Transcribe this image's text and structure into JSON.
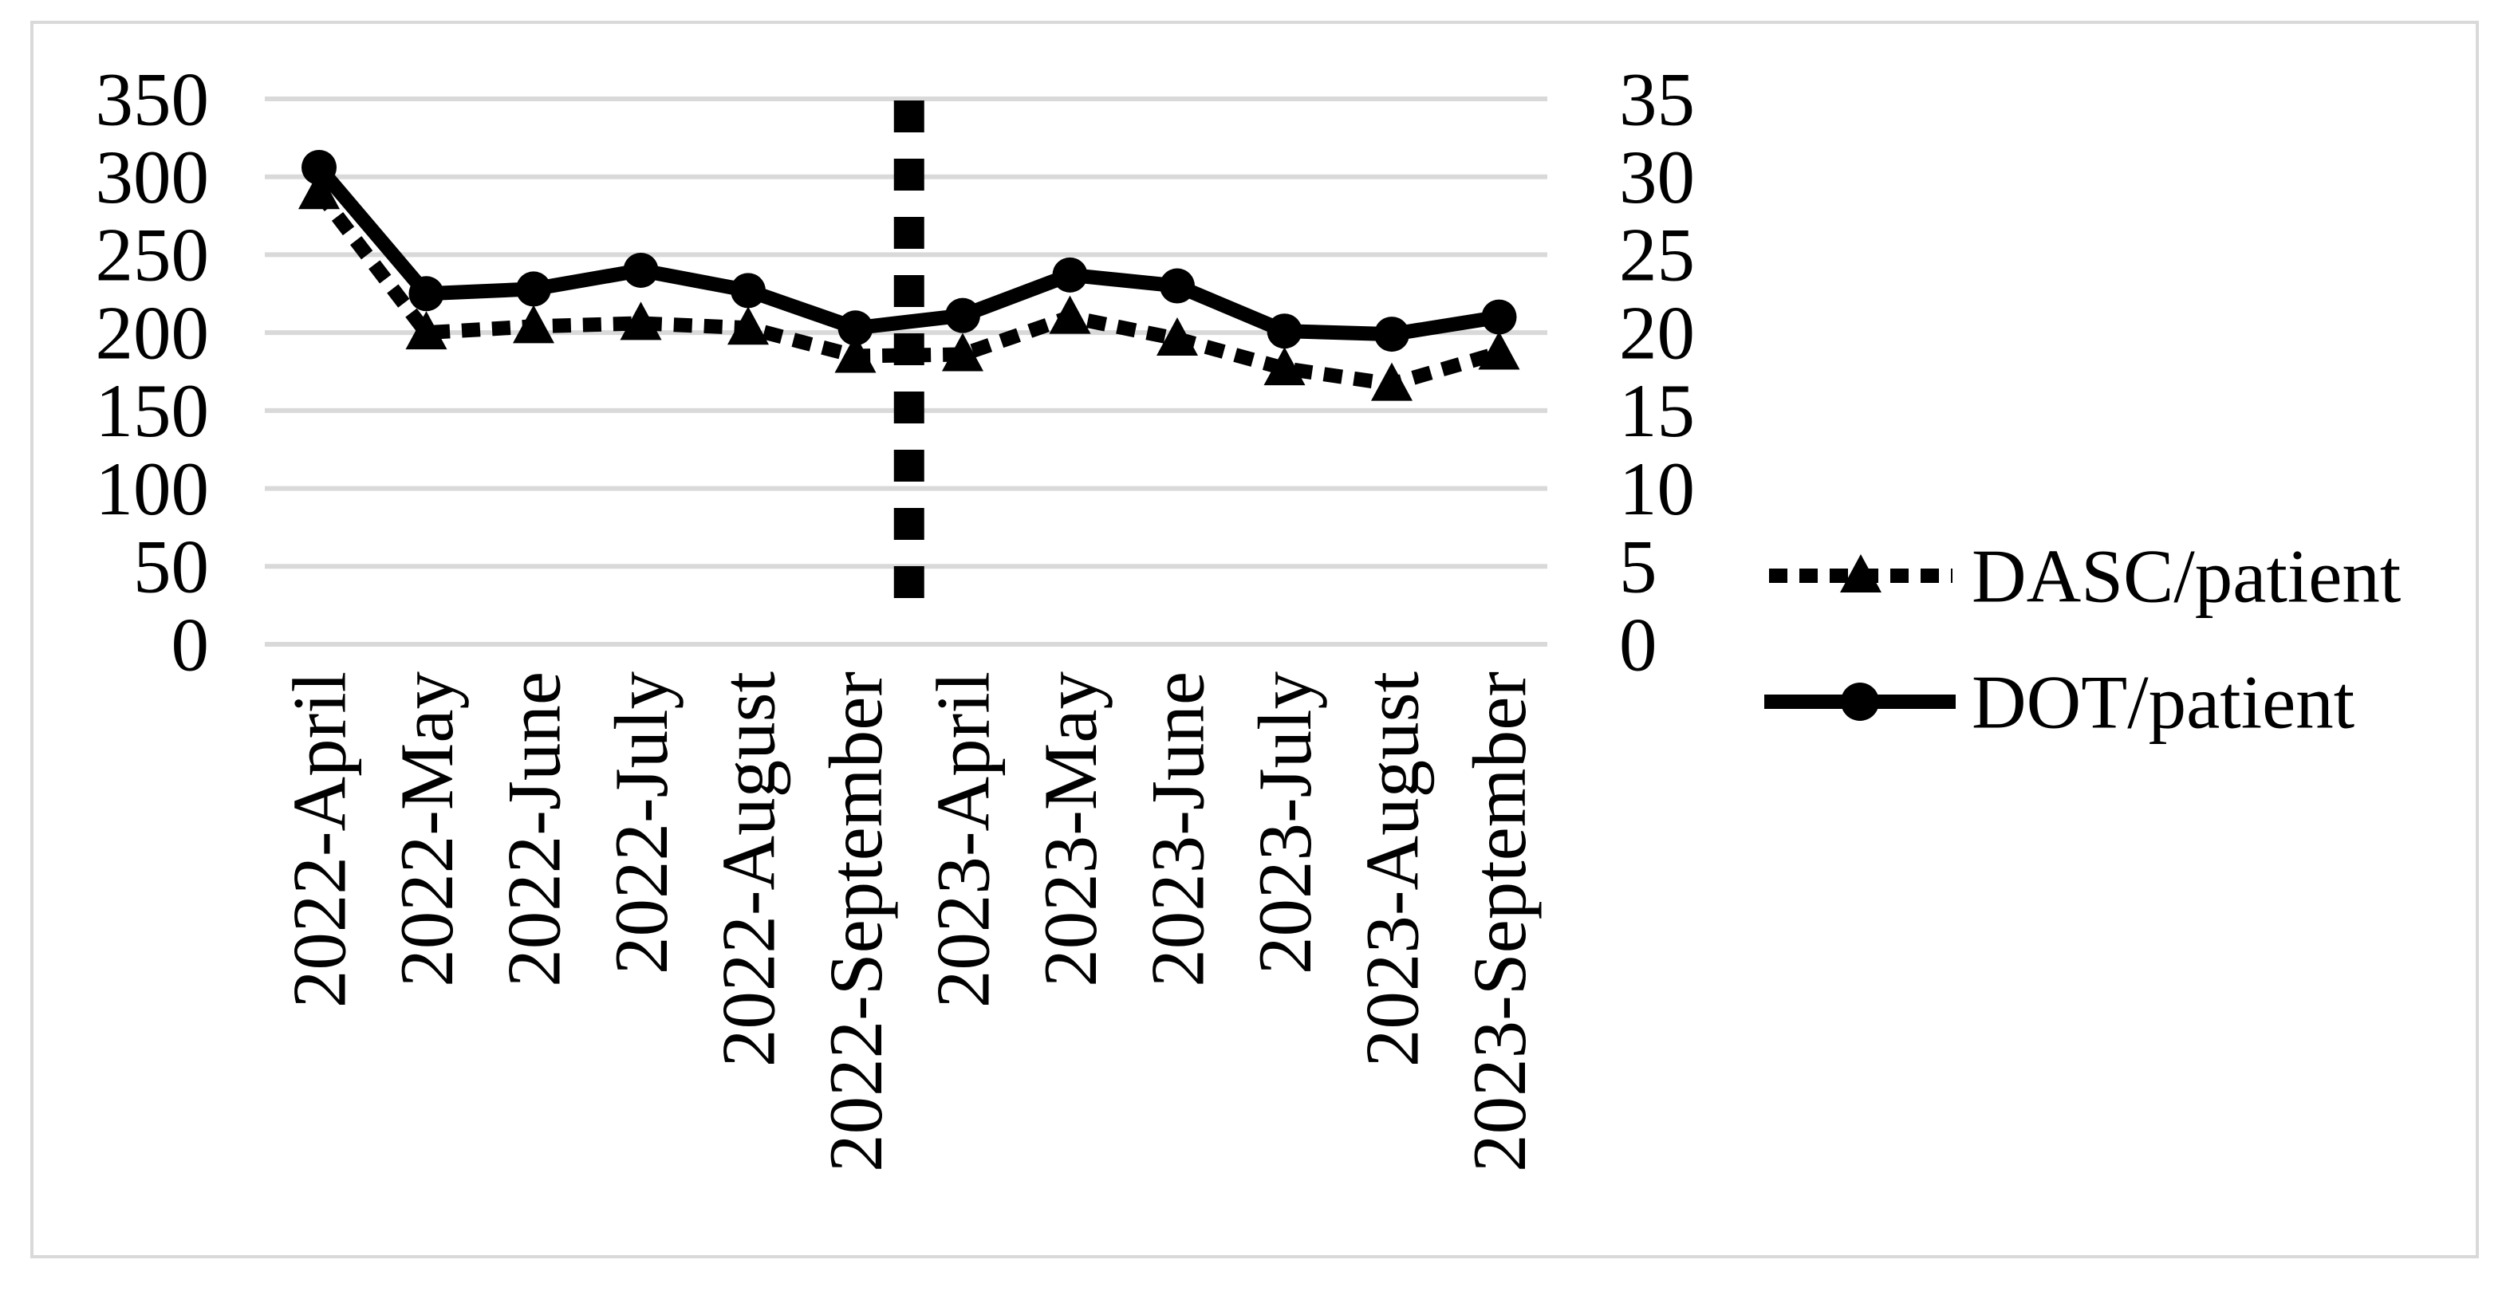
{
  "chart_data": {
    "type": "line",
    "title": "",
    "xlabel": "",
    "ylabel_left": "",
    "ylabel_right": "",
    "grid": "horizontal",
    "categories": [
      "2022-April",
      "2022-May",
      "2022-June",
      "2022-July",
      "2022-August",
      "2022-September",
      "2023-April",
      "2023-May",
      "2023-June",
      "2023-July",
      "2023-August",
      "2023-September"
    ],
    "series": [
      {
        "name": "DASC/patient",
        "axis": "left",
        "line_style": "dotted",
        "marker": "triangle",
        "color": "#000000",
        "values": [
          290,
          200,
          204,
          206,
          203,
          185,
          186,
          210,
          196,
          177,
          167,
          187
        ]
      },
      {
        "name": "DOT/patient",
        "axis": "right",
        "line_style": "solid",
        "marker": "circle",
        "color": "#000000",
        "values": [
          30.6,
          22.5,
          22.8,
          24.0,
          22.7,
          20.3,
          21.1,
          23.7,
          23.0,
          20.1,
          19.9,
          21.0
        ]
      }
    ],
    "left_axis": {
      "min": 0,
      "max": 350,
      "tick_step": 50,
      "ticks": [
        350,
        300,
        250,
        200,
        150,
        100,
        50,
        0
      ]
    },
    "right_axis": {
      "min": 0,
      "max": 35,
      "tick_step": 5,
      "ticks": [
        35,
        30,
        25,
        20,
        15,
        10,
        5,
        0
      ]
    },
    "annotations": [
      {
        "type": "vertical_dashed_line",
        "between": [
          "2022-September",
          "2023-April"
        ]
      }
    ],
    "legend": {
      "position": "right",
      "items": [
        {
          "label": "DASC/patient",
          "marker": "triangle",
          "line_style": "dotted"
        },
        {
          "label": "DOT/patient",
          "marker": "circle",
          "line_style": "solid"
        }
      ]
    }
  },
  "colors": {
    "series": "#000000",
    "gridline": "#d9d9d9",
    "border": "#d9d9d9",
    "background": "#ffffff",
    "text": "#000000"
  }
}
